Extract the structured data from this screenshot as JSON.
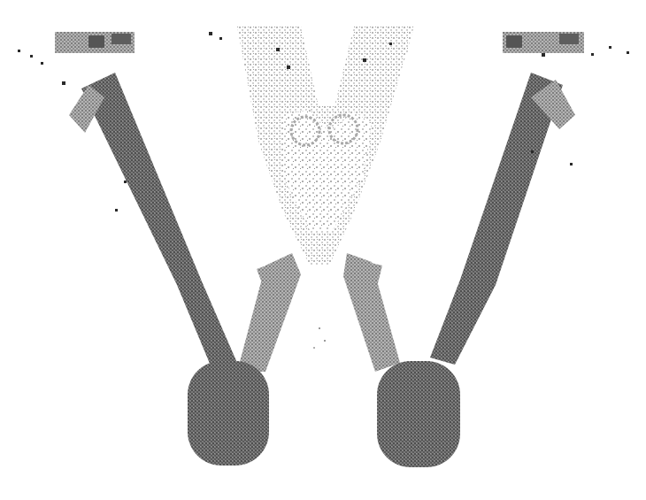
{
  "image": {
    "subject": "stylized-letter-w",
    "style": "dithered-grayscale-halftone"
  },
  "colors": {
    "background": "#ffffff",
    "ink_dark": "#555555",
    "ink_mid": "#8a8a8a",
    "ink_light": "#bdbdbd",
    "ink_speck": "#2a2a2a"
  }
}
